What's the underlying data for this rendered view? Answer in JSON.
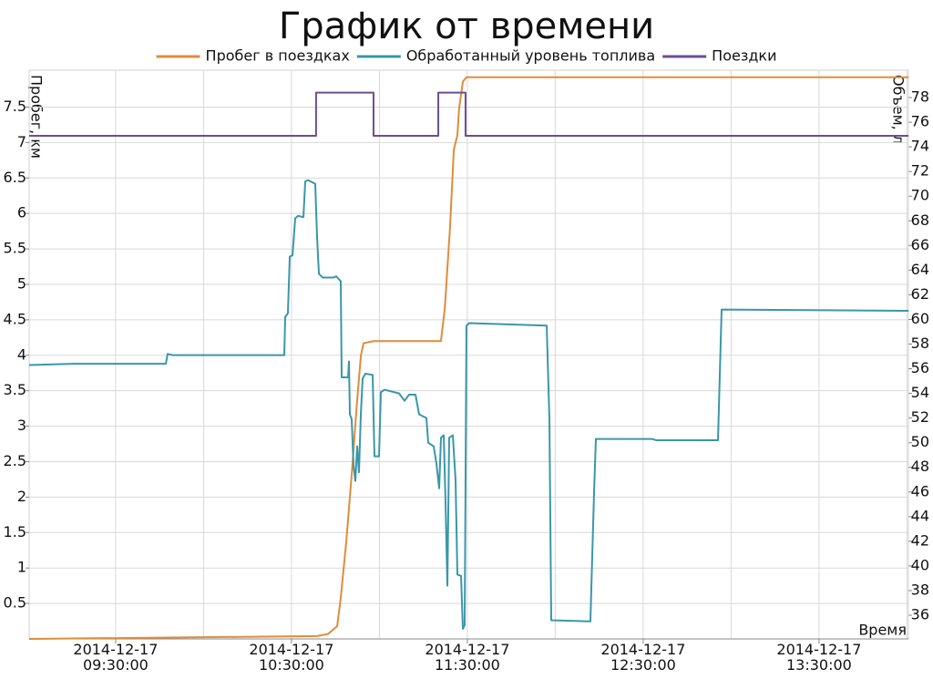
{
  "chart_data": {
    "type": "line",
    "title": "График от времени",
    "xlabel": "Время",
    "ylabel": "Пробег, км",
    "y2label": "Объем, л",
    "xlim": [
      "2014-12-17 09:00:30",
      "2014-12-17 14:00:30"
    ],
    "xticks": [
      "2014-12-17 09:30:00",
      "2014-12-17 10:30:00",
      "2014-12-17 11:30:00",
      "2014-12-17 12:30:00",
      "2014-12-17 13:30:00"
    ],
    "xgrid_minor": [
      "2014-12-17 10:00:00",
      "2014-12-17 11:00:00",
      "2014-12-17 12:00:00",
      "2014-12-17 13:00:00",
      "2014-12-17 14:00:00"
    ],
    "ylim": [
      0,
      8.02
    ],
    "yticks": [
      0.5,
      1,
      1.5,
      2,
      2.5,
      3,
      3.5,
      4,
      4.5,
      5,
      5.5,
      6,
      6.5,
      7,
      7.5
    ],
    "y2lim": [
      34.08,
      80.22
    ],
    "y2ticks": [
      36,
      38,
      40,
      42,
      44,
      46,
      48,
      50,
      52,
      54,
      56,
      58,
      60,
      62,
      64,
      66,
      68,
      70,
      72,
      74,
      76,
      78
    ],
    "grid": true,
    "legend": "top",
    "series": [
      {
        "name": "Пробег в поездках",
        "color": "#e08c3c",
        "axis": "y",
        "x": [
          "2014-12-17 09:00:30",
          "2014-12-17 10:38:42",
          "2014-12-17 10:42:30",
          "2014-12-17 10:45:36",
          "2014-12-17 10:46:48",
          "2014-12-17 10:48:42",
          "2014-12-17 10:50:36",
          "2014-12-17 10:52:24",
          "2014-12-17 10:53:42",
          "2014-12-17 10:54:36",
          "2014-12-17 10:58:00",
          "2014-12-17 11:21:00",
          "2014-12-17 11:22:18",
          "2014-12-17 11:24:06",
          "2014-12-17 11:25:24",
          "2014-12-17 11:26:36",
          "2014-12-17 11:27:12",
          "2014-12-17 11:28:30",
          "2014-12-17 11:29:42",
          "2014-12-17 14:00:30"
        ],
        "values": [
          0,
          0.04,
          0.07,
          0.18,
          0.57,
          1.37,
          2.34,
          3.36,
          4.0,
          4.17,
          4.2,
          4.2,
          4.65,
          5.8,
          6.9,
          7.1,
          7.48,
          7.86,
          7.92,
          7.92
        ]
      },
      {
        "name": "Обработанный уровень топлива",
        "color": "#3a97a8",
        "axis": "y2",
        "x": [
          "2014-12-17 09:00:30",
          "2014-12-17 09:15:25",
          "2014-12-17 09:47:08",
          "2014-12-17 09:47:45",
          "2014-12-17 09:49:37",
          "2014-12-17 10:23:49",
          "2014-12-17 10:25:22",
          "2014-12-17 10:27:33",
          "2014-12-17 10:27:52",
          "2014-12-17 10:28:47",
          "2014-12-17 10:29:25",
          "2014-12-17 10:30:21",
          "2014-12-17 10:31:17",
          "2014-12-17 10:32:13",
          "2014-12-17 10:34:05",
          "2014-12-17 10:34:42",
          "2014-12-17 10:35:38",
          "2014-12-17 10:38:07",
          "2014-12-17 10:38:44",
          "2014-12-17 10:39:22",
          "2014-12-17 10:40:36",
          "2014-12-17 10:44:20",
          "2014-12-17 10:45:16",
          "2014-12-17 10:46:49",
          "2014-12-17 10:47:08",
          "2014-12-17 10:49:19",
          "2014-12-17 10:49:37",
          "2014-12-17 10:49:56",
          "2014-12-17 10:50:33",
          "2014-12-17 10:51:10",
          "2014-12-17 10:51:48",
          "2014-12-17 10:52:25",
          "2014-12-17 10:53:02",
          "2014-12-17 10:53:40",
          "2014-12-17 10:54:17",
          "2014-12-17 10:55:13",
          "2014-12-17 10:57:42",
          "2014-12-17 10:58:19",
          "2014-12-17 10:59:53",
          "2014-12-17 11:00:30",
          "2014-12-17 11:01:45",
          "2014-12-17 11:06:43",
          "2014-12-17 11:08:35",
          "2014-12-17 11:10:08",
          "2014-12-17 11:12:19",
          "2014-12-17 11:13:33",
          "2014-12-17 11:16:03",
          "2014-12-17 11:16:40",
          "2014-12-17 11:18:32",
          "2014-12-17 11:19:28",
          "2014-12-17 11:20:24",
          "2014-12-17 11:21:01",
          "2014-12-17 11:21:57",
          "2014-12-17 11:22:34",
          "2014-12-17 11:23:12",
          "2014-12-17 11:23:49",
          "2014-12-17 11:25:04",
          "2014-12-17 11:26:00",
          "2014-12-17 11:26:37",
          "2014-12-17 11:27:52",
          "2014-12-17 11:28:29",
          "2014-12-17 11:29:06",
          "2014-12-17 11:29:43",
          "2014-12-17 11:30:39",
          "2014-12-17 11:57:05",
          "2014-12-17 11:58:01",
          "2014-12-17 11:58:38",
          "2014-12-17 12:12:00",
          "2014-12-17 12:13:15",
          "2014-12-17 12:13:52",
          "2014-12-17 12:33:09",
          "2014-12-17 12:34:23",
          "2014-12-17 12:55:32",
          "2014-12-17 12:56:46",
          "2014-12-17 14:00:30"
        ],
        "values": [
          56.3,
          56.4,
          56.4,
          57.2,
          57.1,
          57.1,
          57.1,
          57.1,
          60.2,
          60.5,
          65.1,
          65.2,
          68.2,
          68.4,
          68.3,
          71.2,
          71.3,
          71.0,
          66.7,
          63.7,
          63.4,
          63.4,
          63.5,
          63.1,
          55.3,
          55.3,
          56.6,
          52.3,
          51.9,
          48.2,
          46.9,
          49.7,
          47.6,
          52.3,
          55.2,
          55.6,
          55.5,
          48.9,
          48.9,
          54.1,
          54.3,
          54.0,
          53.4,
          53.9,
          53.9,
          52.3,
          52.0,
          50.0,
          49.7,
          48.3,
          46.3,
          50.4,
          50.6,
          45.2,
          38.4,
          50.4,
          50.6,
          46.9,
          39.3,
          39.2,
          34.9,
          35.2,
          59.5,
          59.7,
          59.5,
          51.9,
          35.6,
          35.5,
          46.0,
          50.3,
          50.3,
          50.2,
          50.2,
          60.8,
          60.7
        ]
      },
      {
        "name": "Поездки",
        "color": "#6a4f8f",
        "axis": "y2",
        "x": [
          "2014-12-17 09:00:30",
          "2014-12-17 10:38:24",
          "2014-12-17 10:38:24",
          "2014-12-17 10:58:00",
          "2014-12-17 10:58:00",
          "2014-12-17 11:20:06",
          "2014-12-17 11:20:06",
          "2014-12-17 11:29:24",
          "2014-12-17 11:29:24",
          "2014-12-17 14:00:30"
        ],
        "values": [
          74.9,
          74.9,
          78.4,
          78.4,
          74.9,
          74.9,
          78.4,
          78.4,
          74.9,
          74.9
        ]
      }
    ]
  }
}
